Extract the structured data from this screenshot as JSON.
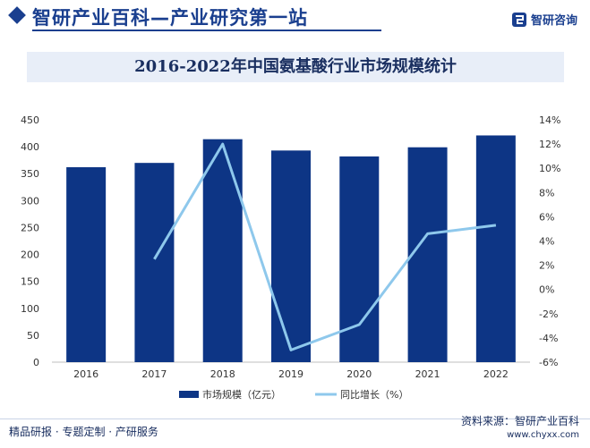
{
  "header": {
    "title": "智研产业百科—产业研究第一站",
    "brand": "智研咨询",
    "brand_color": "#1a3f8f"
  },
  "footer": {
    "left": "精品研报 · 专题定制 · 产研服务",
    "source": "资料来源：智研产业百科",
    "url": "www.chyxx.com"
  },
  "colors": {
    "bar": "#0d3585",
    "line": "#8ec8ec",
    "title_band": "#e8eef8"
  },
  "chart_data": {
    "type": "bar",
    "title": "2016-2022年中国氨基酸行业市场规模统计",
    "categories": [
      "2016",
      "2017",
      "2018",
      "2019",
      "2020",
      "2021",
      "2022"
    ],
    "series": [
      {
        "name": "市场规模（亿元）",
        "type": "bar",
        "axis": "left",
        "values": [
          362,
          370,
          414,
          393,
          382,
          399,
          421
        ]
      },
      {
        "name": "同比增长（%）",
        "type": "line",
        "axis": "right",
        "values": [
          null,
          2.5,
          12.0,
          -5.0,
          -2.9,
          4.6,
          5.3
        ]
      }
    ],
    "y_left": {
      "min": 0,
      "max": 450,
      "ticks": [
        "0",
        "50",
        "100",
        "150",
        "200",
        "250",
        "300",
        "350",
        "400",
        "450"
      ]
    },
    "y_right": {
      "min": -6,
      "max": 14,
      "ticks": [
        "-6%",
        "-4%",
        "-2%",
        "0%",
        "2%",
        "4%",
        "6%",
        "8%",
        "10%",
        "12%",
        "14%"
      ]
    },
    "legend_position": "bottom",
    "grid": false
  }
}
